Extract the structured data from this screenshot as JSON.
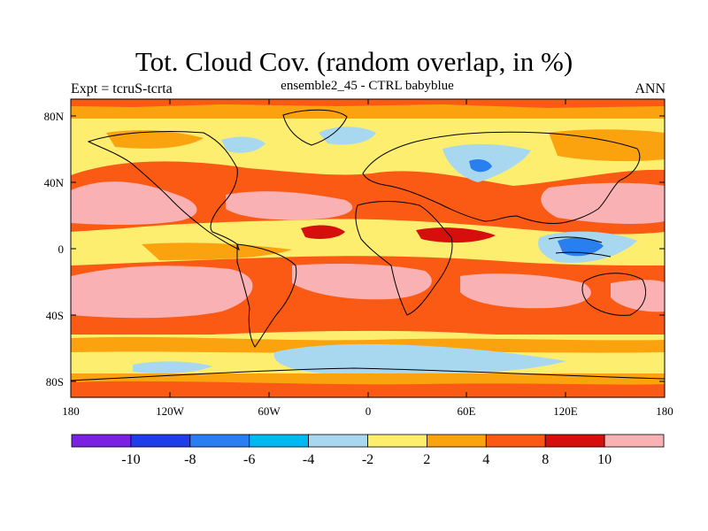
{
  "header": {
    "title": "Tot. Cloud Cov. (random overlap, in %)",
    "subtitle": "ensemble2_45 - CTRL babyblue",
    "left_label": "Expt = tcruS-tcrta",
    "right_label": "ANN"
  },
  "map": {
    "lat_ticks": [
      "80N",
      "40N",
      "0",
      "40S",
      "80S"
    ],
    "lon_ticks": [
      "180",
      "120W",
      "60W",
      "0",
      "60E",
      "120E",
      "180"
    ]
  },
  "colorbar": {
    "levels": [
      "-10",
      "-8",
      "-6",
      "-4",
      "-2",
      "2",
      "4",
      "8",
      "10"
    ],
    "colors": [
      "#7b22e0",
      "#1f3de8",
      "#2a7ff0",
      "#00b9f2",
      "#a8d8f0",
      "#fdee70",
      "#fba20f",
      "#fb5a15",
      "#d60f0c",
      "#f9b1b3"
    ]
  },
  "colors": {
    "neg_strong": "#2a7ff0",
    "neg_light": "#a8d8f0",
    "yellow": "#fdee70",
    "orange": "#fba20f",
    "red_orange": "#fb5a15",
    "dark_red": "#d60f0c",
    "pink": "#f9b1b3"
  }
}
